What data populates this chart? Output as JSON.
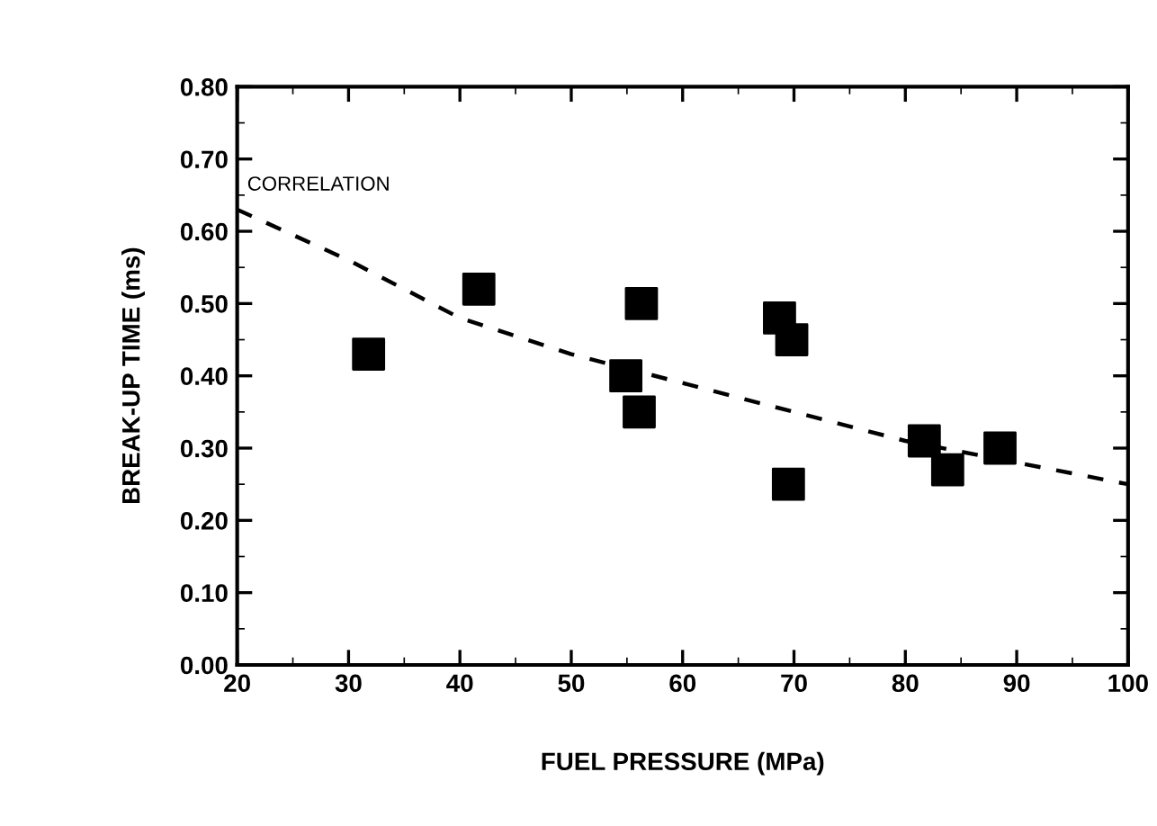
{
  "chart_data": {
    "type": "scatter",
    "xlabel": "FUEL PRESSURE (MPa)",
    "ylabel": "BREAK-UP TIME (ms)",
    "xlim": [
      20,
      100
    ],
    "ylim": [
      0,
      0.8
    ],
    "xticks": [
      20,
      30,
      40,
      50,
      60,
      70,
      80,
      90,
      100
    ],
    "yticks": [
      {
        "value": 0,
        "label": "0.00"
      },
      {
        "value": 0.1,
        "label": "0.10"
      },
      {
        "value": 0.2,
        "label": "0.20"
      },
      {
        "value": 0.3,
        "label": "0.30"
      },
      {
        "value": 0.4,
        "label": "0.40"
      },
      {
        "value": 0.5,
        "label": "0.50"
      },
      {
        "value": 0.6,
        "label": "0.60"
      },
      {
        "value": 0.7,
        "label": "0.70"
      },
      {
        "value": 0.8,
        "label": "0.80"
      }
    ],
    "grid": false,
    "legend": false,
    "series": [
      {
        "color": "#000000",
        "marker": "square",
        "x": [
          31.8,
          41.7,
          56.3,
          54.9,
          56.1,
          68.7,
          69.8,
          69.5,
          81.7,
          83.8,
          88.5
        ],
        "values": [
          0.43,
          0.52,
          0.5,
          0.4,
          0.35,
          0.48,
          0.45,
          0.25,
          0.31,
          0.27,
          0.3
        ]
      },
      {
        "type": "line",
        "name": "CORRELATION",
        "color": "#000000",
        "line_style": "dashed",
        "marker": "none",
        "x": [
          20,
          30,
          40,
          50,
          60,
          70,
          80,
          90,
          100
        ],
        "values": [
          0.63,
          0.56,
          0.48,
          0.43,
          0.39,
          0.35,
          0.31,
          0.28,
          0.25
        ]
      }
    ]
  }
}
